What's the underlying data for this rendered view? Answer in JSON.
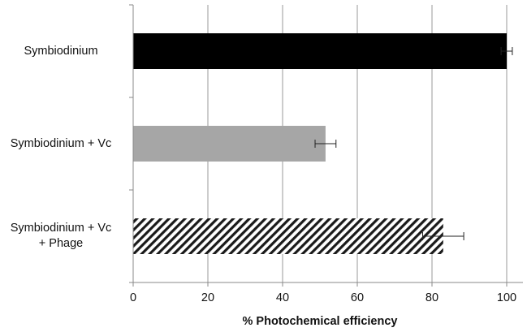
{
  "chart_data": {
    "type": "bar",
    "orientation": "horizontal",
    "categories": [
      "Symbiodinium",
      "Symbiodinium + Vc",
      "Symbiodinium + Vc + Phage"
    ],
    "category_lines": [
      [
        "Symbiodinium"
      ],
      [
        "Symbiodinium + Vc"
      ],
      [
        "Symbiodinium + Vc",
        "+ Phage"
      ]
    ],
    "values": [
      100,
      51.5,
      83
    ],
    "errors": [
      1.5,
      2.8,
      5.5
    ],
    "fills": [
      "solid-black",
      "solid-gray",
      "diagonal-hatch"
    ],
    "colors": {
      "black": "#000000",
      "gray": "#a6a6a6",
      "hatch": "#1a1a1a",
      "grid": "#9a9a9a",
      "axis": "#888888"
    },
    "xlabel": "% Photochemical efficiency",
    "ylabel": "",
    "title": "",
    "xlim": [
      0,
      100
    ],
    "xticks": [
      0,
      20,
      40,
      60,
      80,
      100
    ],
    "grid": "vertical"
  }
}
